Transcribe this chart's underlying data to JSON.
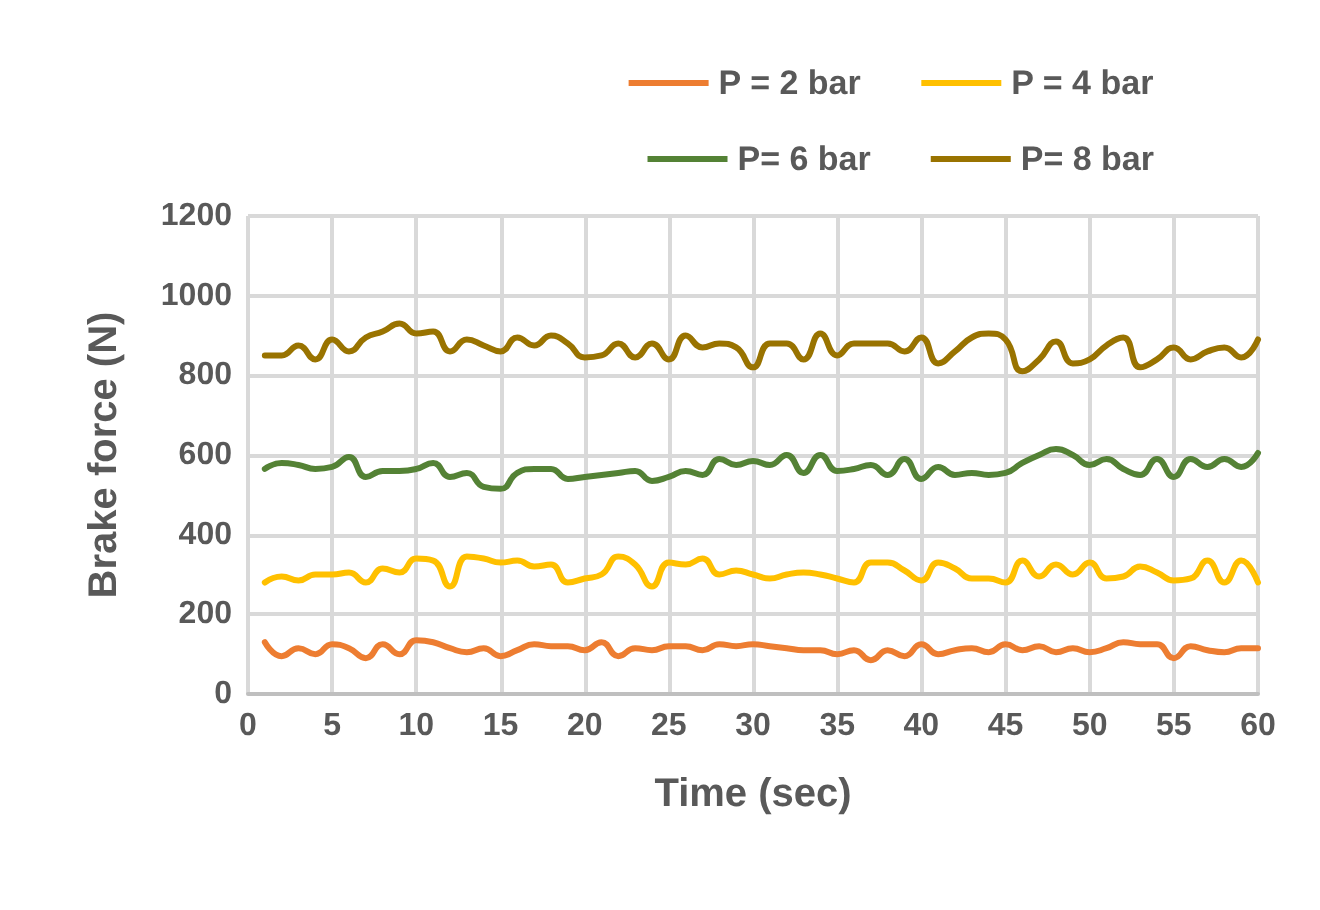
{
  "chart_data": {
    "type": "line",
    "xlabel": "Time (sec)",
    "ylabel": "Brake force (N)",
    "x": [
      1,
      2,
      3,
      4,
      5,
      6,
      7,
      8,
      9,
      10,
      11,
      12,
      13,
      14,
      15,
      16,
      17,
      18,
      19,
      20,
      21,
      22,
      23,
      24,
      25,
      26,
      27,
      28,
      29,
      30,
      31,
      32,
      33,
      34,
      35,
      36,
      37,
      38,
      39,
      40,
      41,
      42,
      43,
      44,
      45,
      46,
      47,
      48,
      49,
      50,
      51,
      52,
      53,
      54,
      55,
      56,
      57,
      58,
      59,
      60
    ],
    "series": [
      {
        "name": "P = 2 bar",
        "color": "#ed7d31",
        "values": [
          130,
          95,
          115,
          100,
          125,
          115,
          90,
          125,
          100,
          135,
          130,
          115,
          105,
          115,
          95,
          110,
          125,
          120,
          120,
          110,
          130,
          95,
          115,
          110,
          120,
          120,
          110,
          125,
          120,
          125,
          120,
          115,
          110,
          110,
          100,
          110,
          85,
          110,
          95,
          125,
          100,
          110,
          115,
          105,
          125,
          110,
          120,
          105,
          115,
          105,
          115,
          130,
          125,
          125,
          90,
          120,
          110,
          105,
          115,
          115
        ]
      },
      {
        "name": "P = 4 bar",
        "color": "#ffc000",
        "values": [
          280,
          295,
          285,
          300,
          300,
          305,
          280,
          315,
          305,
          340,
          335,
          270,
          345,
          340,
          330,
          335,
          320,
          325,
          280,
          290,
          300,
          345,
          325,
          270,
          330,
          325,
          340,
          300,
          310,
          300,
          290,
          300,
          305,
          300,
          290,
          280,
          330,
          330,
          310,
          285,
          330,
          315,
          290,
          290,
          280,
          335,
          295,
          325,
          300,
          330,
          290,
          295,
          320,
          305,
          285,
          290,
          335,
          280,
          335,
          280
        ]
      },
      {
        "name": "P= 6 bar",
        "color": "#548235",
        "values": [
          565,
          580,
          575,
          565,
          570,
          595,
          545,
          560,
          560,
          565,
          580,
          545,
          555,
          520,
          515,
          555,
          565,
          565,
          540,
          545,
          550,
          555,
          560,
          535,
          545,
          560,
          550,
          590,
          575,
          585,
          575,
          600,
          555,
          600,
          560,
          565,
          575,
          550,
          590,
          540,
          570,
          550,
          555,
          550,
          555,
          580,
          600,
          615,
          600,
          575,
          590,
          565,
          550,
          590,
          545,
          590,
          570,
          590,
          570,
          605
        ]
      },
      {
        "name": "P= 8 bar",
        "color": "#997300",
        "values": [
          850,
          850,
          875,
          840,
          890,
          860,
          895,
          910,
          930,
          905,
          910,
          860,
          890,
          875,
          860,
          895,
          875,
          900,
          880,
          845,
          850,
          880,
          845,
          880,
          840,
          900,
          870,
          880,
          870,
          820,
          880,
          880,
          840,
          905,
          850,
          880,
          880,
          880,
          860,
          895,
          830,
          860,
          895,
          905,
          890,
          810,
          840,
          885,
          830,
          840,
          875,
          895,
          820,
          840,
          870,
          840,
          860,
          870,
          845,
          890
        ]
      }
    ],
    "xlim": [
      0,
      60
    ],
    "xticks": [
      0,
      5,
      10,
      15,
      20,
      25,
      30,
      35,
      40,
      45,
      50,
      55,
      60
    ],
    "ylim": [
      0,
      1200
    ],
    "yticks": [
      0,
      200,
      400,
      600,
      800,
      1000,
      1200
    ],
    "grid": true,
    "legend": "top right",
    "marker": "none",
    "line_style": "solid"
  }
}
